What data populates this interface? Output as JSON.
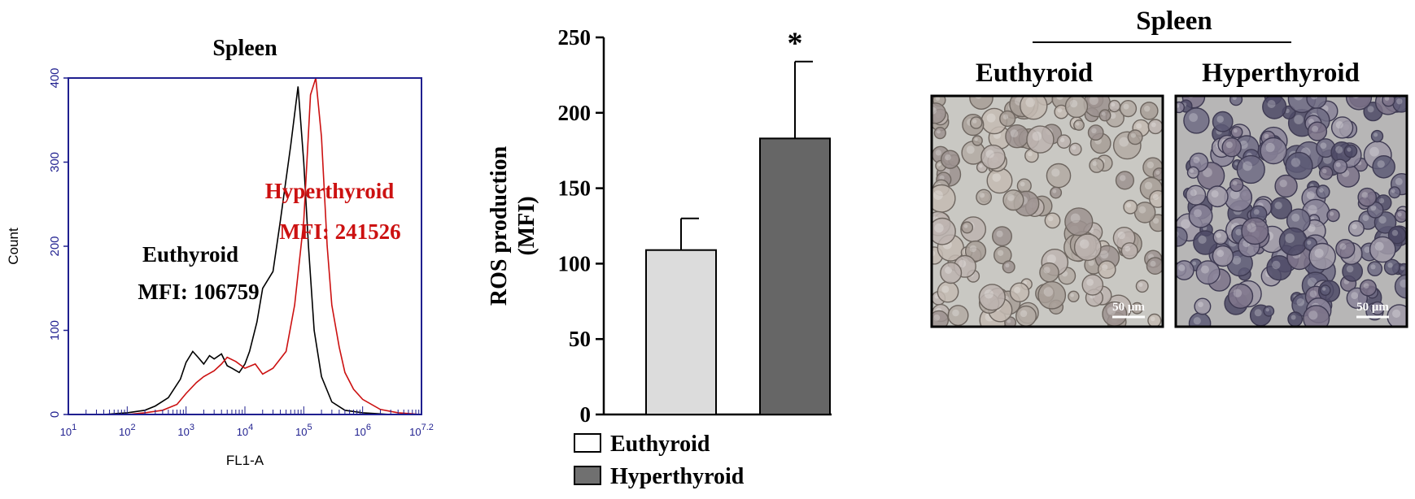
{
  "chart_data": [
    {
      "type": "line",
      "title": "Spleen",
      "xlabel": "FL1-A",
      "ylabel": "Count",
      "x_scale": "log",
      "xlim": [
        10,
        10000000
      ],
      "ylim": [
        0,
        400
      ],
      "y_ticks": [
        "0",
        "100",
        "200",
        "300",
        "400"
      ],
      "x_ticks": [
        {
          "base": "10",
          "exp": "1",
          "value": 10
        },
        {
          "base": "10",
          "exp": "2",
          "value": 100
        },
        {
          "base": "10",
          "exp": "3",
          "value": 1000
        },
        {
          "base": "10",
          "exp": "4",
          "value": 10000
        },
        {
          "base": "10",
          "exp": "5",
          "value": 100000
        },
        {
          "base": "10",
          "exp": "6",
          "value": 1000000
        },
        {
          "base": "10",
          "exp": "7.2",
          "value": 10000000
        }
      ],
      "axis_color": "#1f1f8f",
      "series": [
        {
          "name": "Euthyroid",
          "label_line1": "Euthyroid",
          "label_line2": "MFI: 106759",
          "color": "#000000",
          "x": [
            10,
            40,
            100,
            200,
            300,
            500,
            800,
            1000,
            1300,
            1600,
            2000,
            2500,
            3000,
            4000,
            5000,
            6000,
            8000,
            10000,
            12000,
            16000,
            20000,
            30000,
            40000,
            60000,
            80000,
            100000,
            120000,
            150000,
            200000,
            300000,
            500000,
            1000000,
            3000000,
            10000000
          ],
          "y": [
            0,
            0,
            2,
            5,
            10,
            20,
            42,
            62,
            75,
            68,
            60,
            70,
            66,
            72,
            58,
            55,
            50,
            60,
            75,
            110,
            150,
            170,
            230,
            320,
            390,
            300,
            200,
            100,
            45,
            15,
            5,
            2,
            0,
            0
          ]
        },
        {
          "name": "Hyperthyroid",
          "label_line1": "Hyperthyroid",
          "label_line2": "MFI: 241526",
          "color": "#cc1111",
          "x": [
            10,
            100,
            200,
            400,
            700,
            1000,
            1500,
            2000,
            3000,
            4000,
            5000,
            7000,
            10000,
            15000,
            20000,
            30000,
            50000,
            70000,
            100000,
            130000,
            160000,
            200000,
            250000,
            300000,
            400000,
            500000,
            700000,
            1000000,
            2000000,
            4000000,
            10000000
          ],
          "y": [
            0,
            0,
            2,
            5,
            12,
            25,
            38,
            45,
            52,
            60,
            68,
            63,
            55,
            60,
            48,
            55,
            75,
            130,
            230,
            380,
            400,
            330,
            200,
            130,
            80,
            50,
            30,
            18,
            6,
            2,
            0
          ]
        }
      ]
    },
    {
      "type": "bar",
      "ylabel_line1": "ROS production",
      "ylabel_line2": "(MFI)",
      "ylim": [
        0,
        250
      ],
      "y_ticks": [
        "0",
        "50",
        "100",
        "150",
        "200",
        "250"
      ],
      "categories": [
        "Euthyroid",
        "Hyperthyroid"
      ],
      "values": [
        109,
        183
      ],
      "errors": [
        21,
        51
      ],
      "colors": [
        "#dcdcdc",
        "#666666"
      ],
      "annotation": "*",
      "legend": [
        "Euthyroid",
        "Hyperthyroid"
      ],
      "legend_colors": [
        "#ffffff",
        "#707070"
      ],
      "legend_position": "bottom"
    }
  ],
  "micrographs": {
    "title": "Spleen",
    "panels": [
      {
        "label": "Euthyroid",
        "scale_bar": "50 μm"
      },
      {
        "label": "Hyperthyroid",
        "scale_bar": "50 μm"
      }
    ]
  }
}
